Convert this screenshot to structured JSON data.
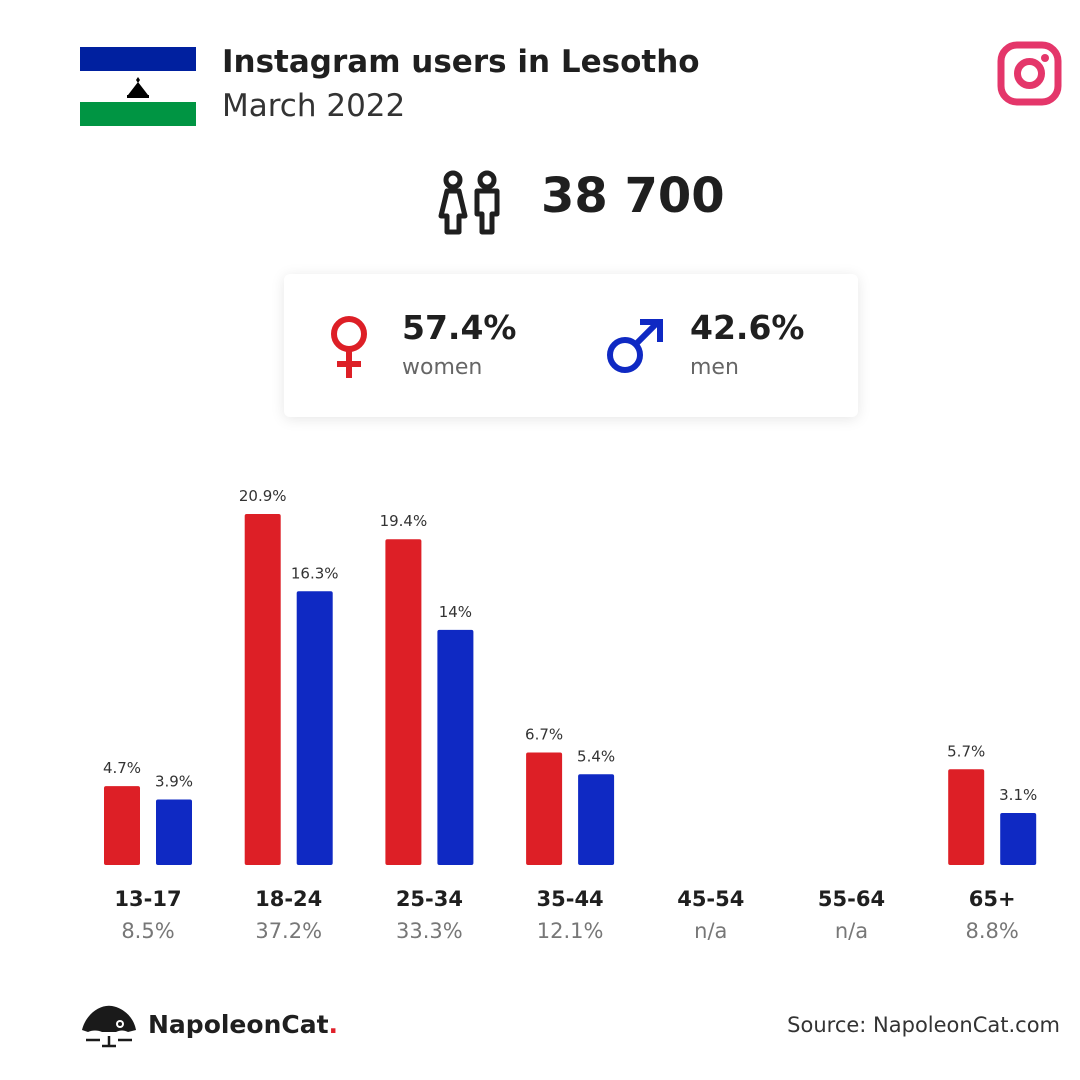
{
  "header": {
    "title": "Instagram users in Lesotho",
    "subtitle": "March 2022"
  },
  "summary": {
    "total_users": "38 700"
  },
  "gender": {
    "women_pct": "57.4%",
    "women_label": "women",
    "men_pct": "42.6%",
    "men_label": "men"
  },
  "footer": {
    "brand": "NapoleonCat",
    "brand_dot": ".",
    "source": "Source: NapoleonCat.com"
  },
  "colors": {
    "women": "#dd1f26",
    "men": "#0f29c3",
    "instagram": "#e4366a",
    "flag_blue": "#00209f",
    "flag_green": "#009543"
  },
  "chart_data": {
    "type": "bar",
    "categories": [
      "13-17",
      "18-24",
      "25-34",
      "35-44",
      "45-54",
      "55-64",
      "65+"
    ],
    "category_totals": [
      "8.5%",
      "37.2%",
      "33.3%",
      "12.1%",
      "n/a",
      "n/a",
      "8.8%"
    ],
    "series": [
      {
        "name": "women",
        "values": [
          4.7,
          20.9,
          19.4,
          6.7,
          null,
          null,
          5.7
        ],
        "labels": [
          "4.7%",
          "20.9%",
          "19.4%",
          "6.7%",
          "",
          "",
          "5.7%"
        ]
      },
      {
        "name": "men",
        "values": [
          3.9,
          16.3,
          14,
          5.4,
          null,
          null,
          3.1
        ],
        "labels": [
          "3.9%",
          "16.3%",
          "14%",
          "5.4%",
          "",
          "",
          "3.1%"
        ]
      }
    ],
    "ylim": [
      0,
      20.9
    ]
  }
}
